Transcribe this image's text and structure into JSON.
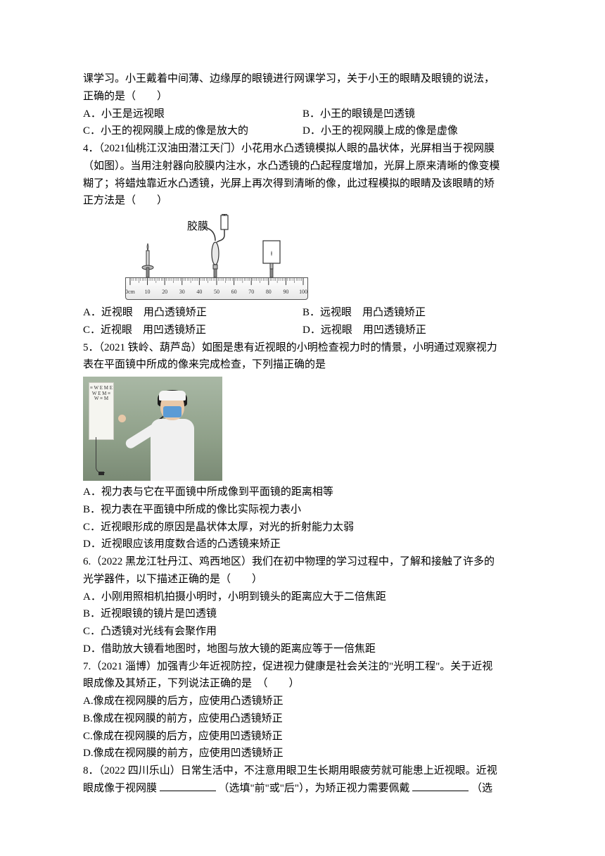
{
  "intro": {
    "line1": "课学习。小王戴着中间薄、边缘厚的眼镜进行网课学习，关于小王的眼睛及眼镜的说法，",
    "line2": "正确的是（　　）"
  },
  "q3_options": {
    "A": "A．小王是远视眼",
    "B": "B．小王的眼镜是凹透镜",
    "C": "C．小王的视网膜上成的像是放大的",
    "D": "D．小王的视网膜上成的像是虚像"
  },
  "q4": {
    "stem1": "4．（2021仙桃江汉油田潜江天门）小花用水凸透镜模拟人眼的晶状体，光屏相当于视网膜",
    "stem2": "（如图）。当用注射器向胶膜内注水，水凸透镜的凸起程度增加，光屏上原来清晰的像变模",
    "stem3": "糊了；将蜡烛靠近水凸透镜，光屏上再次得到清晰的像，此过程模拟的眼睛及该眼睛的矫",
    "stem4": "正方法是（　　）",
    "label_jiaomo": "胶膜",
    "ruler": {
      "ticks": [
        "0cm",
        "10",
        "20",
        "30",
        "40",
        "50",
        "60",
        "70",
        "80",
        "90",
        "100"
      ]
    },
    "colors": {
      "ink": "#333333",
      "ruler_border": "#555555",
      "ruler_light": "#ffffff",
      "ruler_dark": "#e8e8e8"
    }
  },
  "q4_options": {
    "A": "A．近视眼　用凸透镜矫正",
    "B": "B．远视眼　用凸透镜矫正",
    "C": "C．近视眼　用凹透镜矫正",
    "D": "D．远视眼　用凹透镜矫正"
  },
  "q5": {
    "stem1": "5．（2021 铁岭、葫芦岛）如图是患有近视眼的小明检查视力时的情景，小明通过观察视力",
    "stem2": "表在平面镜中所成的像来完成检查，下列描正确的是",
    "photo": {
      "bg_top": "#a9b8a5",
      "bg_mid": "#8fa089",
      "bg_bot": "#7a8a75",
      "chart_bg": "#f5f5f0",
      "mask_color": "#5b9bd5",
      "skin": "#e8c8a8",
      "coat": "#f0f0f0",
      "hair": "#1a1a1a",
      "chart_glyphs": "≡ W E\nM E W\nE M ≡\nW ≡ M"
    }
  },
  "q5_options": {
    "A": "A．视力表与它在平面镜中所成像到平面镜的距离相等",
    "B": "B．视力表在平面镜中所成的像比实际视力表小",
    "C": "C．近视眼形成的原因是晶状体太厚，对光的折射能力太弱",
    "D": "D．近视眼应该用度数合适的凸透镜来矫正"
  },
  "q6": {
    "stem1": "6.（2022 黑龙江牡丹江、鸡西地区）我们在初中物理的学习过程中，了解和接触了许多的",
    "stem2": "光学器件，以下描述正确的是（　　）"
  },
  "q6_options": {
    "A": "A．小刚用照相机拍摄小明时，小明到镜头的距离应大于二倍焦距",
    "B": "B．近视眼镜的镜片是凹透镜",
    "C": "C．凸透镜对光线有会聚作用",
    "D": "D．借助放大镜看地图时，地图与放大镜的距离应等于一倍焦距"
  },
  "q7": {
    "stem1": "7.（2021 淄博）加强青少年近视防控，促进视力健康是社会关注的\"光明工程\"。关于近视",
    "stem2": "眼成像及其矫正，下列说法正确的是　（　　）"
  },
  "q7_options": {
    "A": "A.像成在视网膜的后方，应使用凸透镜矫正",
    "B": "B.像成在视网膜的前方，应使用凸透镜矫正",
    "C": "C.像成在视网膜的后方，应使用凹透镜矫正",
    "D": "D.像成在视网膜的前方，应使用凹透镜矫正"
  },
  "q8": {
    "stem1_a": "8．（2022 四川乐山）日常生活中，不注意用眼卫生长期用眼疲劳就可能患上近视眼。近视",
    "stem1_b": "眼成像于视网膜",
    "stem1_c": "（选填\"前\"或\"后\"），为矫正视力需要佩戴",
    "stem1_d": "（选"
  }
}
